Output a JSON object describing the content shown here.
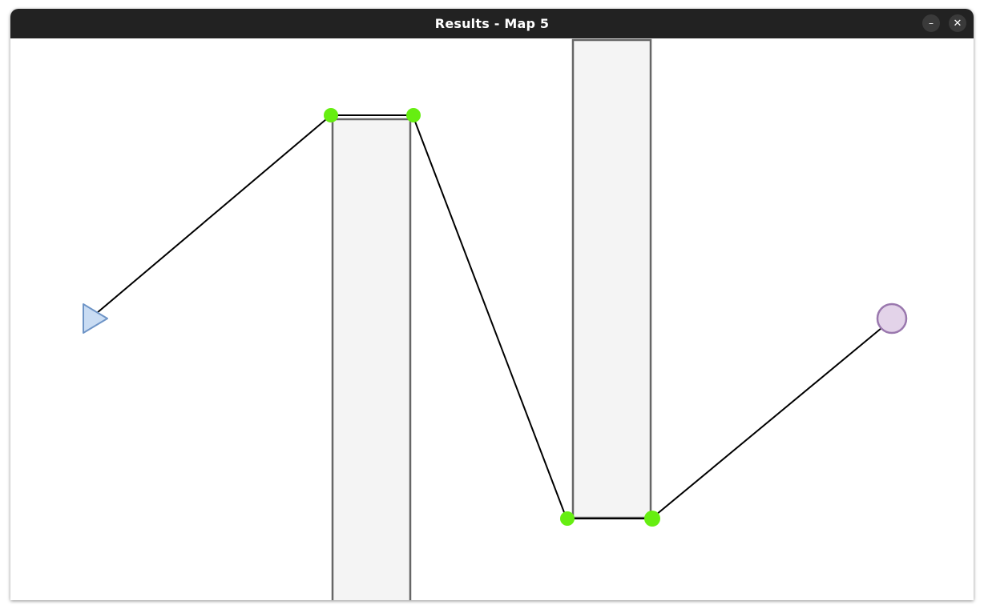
{
  "window": {
    "title": "Results - Map 5",
    "minimize_glyph": "–",
    "close_glyph": "✕"
  },
  "map": {
    "start_marker_icon": "triangle-right-icon",
    "goal_marker_icon": "circle-icon",
    "colors": {
      "obstacle_fill": "#f4f4f4",
      "obstacle_stroke": "#666666",
      "waypoint": "#66ee11",
      "path": "#000000",
      "start_fill": "#c9dcf3",
      "start_stroke": "#6f95c7",
      "goal_fill": "#e3d3e9",
      "goal_stroke": "#9a78ae"
    }
  }
}
